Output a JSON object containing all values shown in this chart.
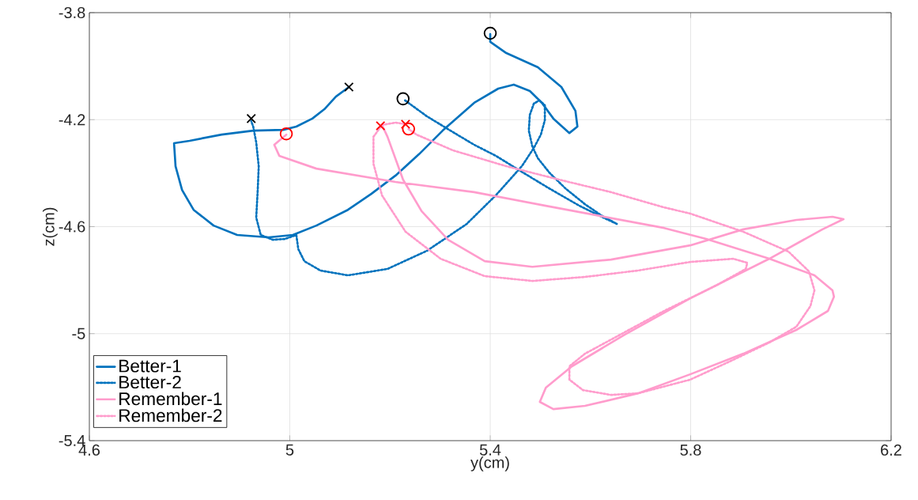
{
  "chart_data": {
    "type": "line",
    "xlabel": "y(cm)",
    "ylabel": "z(cm)",
    "xlim": [
      4.6,
      6.2
    ],
    "ylim": [
      -5.4,
      -3.8
    ],
    "xticks": [
      4.6,
      5,
      5.4,
      5.8,
      6.2
    ],
    "yticks": [
      -5.4,
      -5,
      -4.6,
      -4.2,
      -3.8
    ],
    "grid": true,
    "legend": "bottom left",
    "series": [
      {
        "name": "Better-1",
        "color": "#0072bd",
        "line_style": "solid",
        "x": [
          5.4,
          5.4,
          5.432,
          5.495,
          5.542,
          5.57,
          5.574,
          5.558,
          5.526,
          5.503,
          5.479,
          5.447,
          5.416,
          5.368,
          5.305,
          5.258,
          5.211,
          5.163,
          5.116,
          5.053,
          5.006,
          4.958,
          4.895,
          4.848,
          4.808,
          4.785,
          4.772,
          4.769,
          4.8,
          4.864,
          4.927,
          4.987,
          5.013,
          5.045,
          5.069,
          5.092,
          5.118
        ],
        "values": [
          -3.88,
          -3.909,
          -3.951,
          -4.004,
          -4.078,
          -4.167,
          -4.226,
          -4.25,
          -4.196,
          -4.137,
          -4.093,
          -4.069,
          -4.084,
          -4.137,
          -4.241,
          -4.329,
          -4.409,
          -4.477,
          -4.537,
          -4.596,
          -4.631,
          -4.64,
          -4.631,
          -4.596,
          -4.537,
          -4.463,
          -4.374,
          -4.288,
          -4.279,
          -4.256,
          -4.241,
          -4.238,
          -4.226,
          -4.196,
          -4.161,
          -4.114,
          -4.078
        ]
      },
      {
        "name": "Better-2",
        "color": "#0072bd",
        "line_style": "dotted",
        "x": [
          5.23,
          5.274,
          5.326,
          5.368,
          5.411,
          5.463,
          5.515,
          5.578,
          5.629,
          5.653,
          5.621,
          5.589,
          5.55,
          5.518,
          5.495,
          5.484,
          5.477,
          5.479,
          5.487,
          5.498,
          5.509,
          5.509,
          5.501,
          5.487,
          5.463,
          5.411,
          5.353,
          5.274,
          5.195,
          5.116,
          5.061,
          5.029,
          5.017,
          5.013,
          4.99,
          4.966,
          4.942,
          4.933,
          4.936,
          4.938,
          4.933,
          4.927,
          4.923
        ],
        "values": [
          -4.128,
          -4.188,
          -4.247,
          -4.294,
          -4.335,
          -4.395,
          -4.454,
          -4.522,
          -4.569,
          -4.59,
          -4.557,
          -4.516,
          -4.457,
          -4.398,
          -4.344,
          -4.3,
          -4.241,
          -4.182,
          -4.14,
          -4.128,
          -4.146,
          -4.202,
          -4.256,
          -4.306,
          -4.374,
          -4.483,
          -4.59,
          -4.69,
          -4.758,
          -4.782,
          -4.764,
          -4.729,
          -4.684,
          -4.631,
          -4.646,
          -4.649,
          -4.631,
          -4.566,
          -4.463,
          -4.374,
          -4.285,
          -4.226,
          -4.205
        ]
      },
      {
        "name": "Remember-1",
        "color": "#ff9ccc",
        "line_style": "solid",
        "x": [
          4.993,
          4.969,
          4.979,
          5.053,
          5.211,
          5.368,
          5.511,
          5.747,
          5.831,
          5.957,
          6.047,
          6.083,
          6.086,
          6.074,
          6.011,
          5.905,
          5.799,
          5.695,
          5.589,
          5.526,
          5.499,
          5.511,
          5.563,
          5.668,
          5.799,
          5.957,
          6.063,
          6.105,
          6.083,
          6.011,
          5.905,
          5.799,
          5.641,
          5.484,
          5.389,
          5.316,
          5.263,
          5.226,
          5.195,
          5.184
        ],
        "values": [
          -4.256,
          -4.294,
          -4.335,
          -4.383,
          -4.433,
          -4.471,
          -4.522,
          -4.605,
          -4.646,
          -4.72,
          -4.782,
          -4.838,
          -4.862,
          -4.915,
          -4.986,
          -5.075,
          -5.152,
          -5.223,
          -5.27,
          -5.282,
          -5.255,
          -5.202,
          -5.122,
          -5.004,
          -4.868,
          -4.72,
          -4.61,
          -4.572,
          -4.563,
          -4.575,
          -4.61,
          -4.67,
          -4.723,
          -4.75,
          -4.729,
          -4.649,
          -4.542,
          -4.424,
          -4.264,
          -4.22
        ]
      },
      {
        "name": "Remember-2",
        "color": "#ff9ccc",
        "line_style": "dotted",
        "x": [
          5.237,
          5.253,
          5.326,
          5.432,
          5.537,
          5.641,
          5.747,
          5.799,
          5.905,
          5.995,
          6.036,
          6.047,
          6.039,
          6.011,
          5.957,
          5.878,
          5.799,
          5.695,
          5.641,
          5.585,
          5.558,
          5.558,
          5.589,
          5.668,
          5.747,
          5.853,
          5.91,
          5.913,
          5.885,
          5.799,
          5.695,
          5.589,
          5.484,
          5.389,
          5.301,
          5.231,
          5.184,
          5.167,
          5.167,
          5.184,
          5.211,
          5.231
        ],
        "values": [
          -4.235,
          -4.256,
          -4.315,
          -4.374,
          -4.424,
          -4.471,
          -4.528,
          -4.551,
          -4.619,
          -4.693,
          -4.767,
          -4.838,
          -4.897,
          -4.974,
          -5.033,
          -5.104,
          -5.172,
          -5.223,
          -5.229,
          -5.211,
          -5.172,
          -5.122,
          -5.075,
          -4.995,
          -4.915,
          -4.818,
          -4.758,
          -4.735,
          -4.72,
          -4.732,
          -4.764,
          -4.788,
          -4.803,
          -4.785,
          -4.72,
          -4.619,
          -4.483,
          -4.365,
          -4.264,
          -4.22,
          -4.211,
          -4.217
        ]
      },
      {
        "type": "scatter",
        "marker": "circle",
        "color": "#000000",
        "x": [
          5.4,
          5.226
        ],
        "values": [
          -3.877,
          -4.122
        ]
      },
      {
        "type": "scatter",
        "marker": "cross",
        "color": "#000000",
        "x": [
          5.118,
          4.923
        ],
        "values": [
          -4.078,
          -4.196
        ]
      },
      {
        "type": "scatter",
        "marker": "circle",
        "color": "#ff0000",
        "x": [
          4.993,
          5.237
        ],
        "values": [
          -4.253,
          -4.235
        ]
      },
      {
        "type": "scatter",
        "marker": "cross",
        "color": "#ff0000",
        "x": [
          5.181,
          5.231
        ],
        "values": [
          -4.223,
          -4.217
        ]
      }
    ]
  }
}
